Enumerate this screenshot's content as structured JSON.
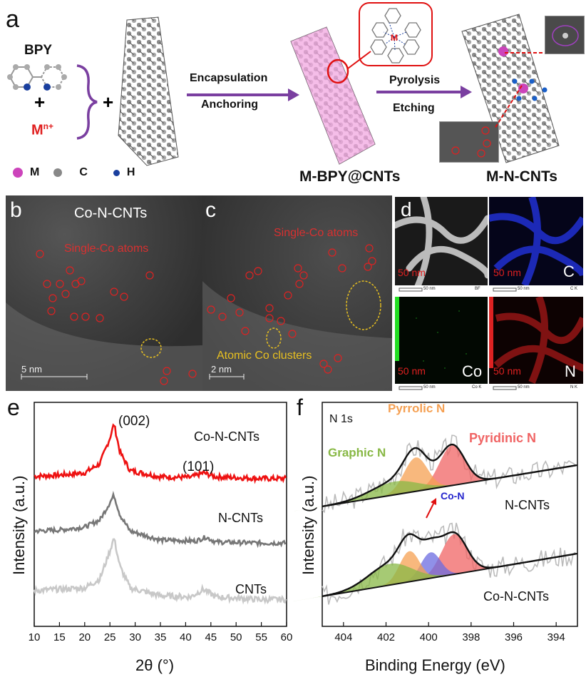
{
  "panel_a": {
    "letter": "a",
    "bpy_label": "BPY",
    "metal_ion_base": "M",
    "metal_ion_sup": "n+",
    "plus": "+",
    "arrow1_top": "Encapsulation",
    "arrow1_bottom": "Anchoring",
    "arrow2_top": "Pyrolysis",
    "arrow2_bottom": "Etching",
    "product1": "M-BPY@CNTs",
    "product2": "M-N-CNTs",
    "complex_metal": "M",
    "legend": [
      {
        "name": "M",
        "color": "#cc44bb"
      },
      {
        "name": "C",
        "color": "#888888"
      },
      {
        "name": "H",
        "color": "#1a3f9e"
      }
    ]
  },
  "panel_b": {
    "letter": "b",
    "title": "Co-N-CNTs",
    "annotation": "Single-Co atoms",
    "scale": "5 nm"
  },
  "panel_c": {
    "letter": "c",
    "annotation1": "Single-Co atoms",
    "annotation2": "Atomic Co clusters",
    "scale": "2 nm"
  },
  "panel_d": {
    "letter": "d",
    "maps": [
      {
        "element": "",
        "scale": "50 nm",
        "footer": "BF",
        "color": "#dddddd",
        "bg": "#1a1a1a"
      },
      {
        "element": "C",
        "scale": "50 nm",
        "footer": "C K",
        "color": "#2233dd",
        "bg": "#05051a"
      },
      {
        "element": "Co",
        "scale": "50 nm",
        "footer": "Co K",
        "color": "#22bb22",
        "bg": "#020802"
      },
      {
        "element": "N",
        "scale": "50 nm",
        "footer": "N K",
        "color": "#cc2222",
        "bg": "#0d0202"
      }
    ],
    "scale_footer": "50 nm"
  },
  "panel_e": {
    "letter": "e",
    "peak1": "(002)",
    "peak2": "(101)",
    "ylabel": "Intensity (a.u.)",
    "xlabel": "2θ (°)",
    "series_labels": [
      "Co-N-CNTs",
      "N-CNTs",
      "CNTs"
    ],
    "colors": [
      "#ee1111",
      "#777777",
      "#c8c8c8"
    ]
  },
  "panel_f": {
    "letter": "f",
    "core_level": "N 1s",
    "pyrrolic": "Pyrrolic N",
    "pyridinic": "Pyridinic N",
    "graphitic": "Graphic N",
    "con": "Co-N",
    "sample_top": "N-CNTs",
    "sample_bottom": "Co-N-CNTs",
    "ylabel": "Intensity (a.u.)",
    "xlabel": "Binding Energy (eV)",
    "colors": {
      "pyrrolic": "#f5a052",
      "pyridinic": "#f06464",
      "graphitic": "#88b845",
      "con": "#6b6be0"
    }
  },
  "chart_data": [
    {
      "type": "line",
      "panel": "e",
      "xlabel": "2θ (°)",
      "ylabel": "Intensity (a.u.)",
      "xlim": [
        10,
        60
      ],
      "xticks": [
        10,
        15,
        20,
        25,
        30,
        35,
        40,
        45,
        50,
        55,
        60
      ],
      "series": [
        {
          "name": "Co-N-CNTs",
          "x": [
            10,
            15,
            20,
            23,
            25,
            25.8,
            27,
            29,
            35,
            41,
            43.5,
            46,
            55,
            60
          ],
          "y": [
            0.08,
            0.1,
            0.14,
            0.3,
            0.75,
            1.0,
            0.5,
            0.18,
            0.07,
            0.06,
            0.14,
            0.07,
            0.04,
            0.04
          ]
        },
        {
          "name": "N-CNTs",
          "x": [
            10,
            15,
            20,
            23,
            25,
            25.8,
            27,
            29,
            35,
            42,
            44,
            46,
            55,
            60
          ],
          "y": [
            0.28,
            0.3,
            0.36,
            0.5,
            0.85,
            1.0,
            0.6,
            0.28,
            0.1,
            0.08,
            0.16,
            0.06,
            0.04,
            0.04
          ]
        },
        {
          "name": "CNTs",
          "x": [
            10,
            15,
            20,
            23,
            25,
            25.8,
            27,
            29,
            35,
            41,
            43.5,
            46,
            55,
            60
          ],
          "y": [
            0.18,
            0.2,
            0.22,
            0.36,
            0.8,
            1.0,
            0.55,
            0.22,
            0.1,
            0.08,
            0.2,
            0.08,
            0.04,
            0.04
          ]
        }
      ]
    },
    {
      "type": "area",
      "panel": "f",
      "xlabel": "Binding Energy (eV)",
      "ylabel": "Intensity (a.u.)",
      "xlim": [
        405,
        393
      ],
      "xticks": [
        404,
        402,
        400,
        398,
        396,
        394
      ],
      "series": [
        {
          "name": "Pyridinic N",
          "sample": "N-CNTs",
          "center": 398.9,
          "height": 0.85,
          "fwhm": 1.4
        },
        {
          "name": "Pyrrolic N",
          "sample": "N-CNTs",
          "center": 400.6,
          "height": 0.72,
          "fwhm": 1.3
        },
        {
          "name": "Graphic N",
          "sample": "N-CNTs",
          "center": 401.6,
          "height": 0.28,
          "fwhm": 2.6
        },
        {
          "name": "Pyridinic N",
          "sample": "Co-N-CNTs",
          "center": 398.8,
          "height": 0.85,
          "fwhm": 1.4
        },
        {
          "name": "Co-N",
          "sample": "Co-N-CNTs",
          "center": 399.9,
          "height": 0.55,
          "fwhm": 1.1
        },
        {
          "name": "Pyrrolic N",
          "sample": "Co-N-CNTs",
          "center": 400.9,
          "height": 0.65,
          "fwhm": 1.1
        },
        {
          "name": "Graphic N",
          "sample": "Co-N-CNTs",
          "center": 401.8,
          "height": 0.45,
          "fwhm": 2.4
        }
      ]
    }
  ]
}
